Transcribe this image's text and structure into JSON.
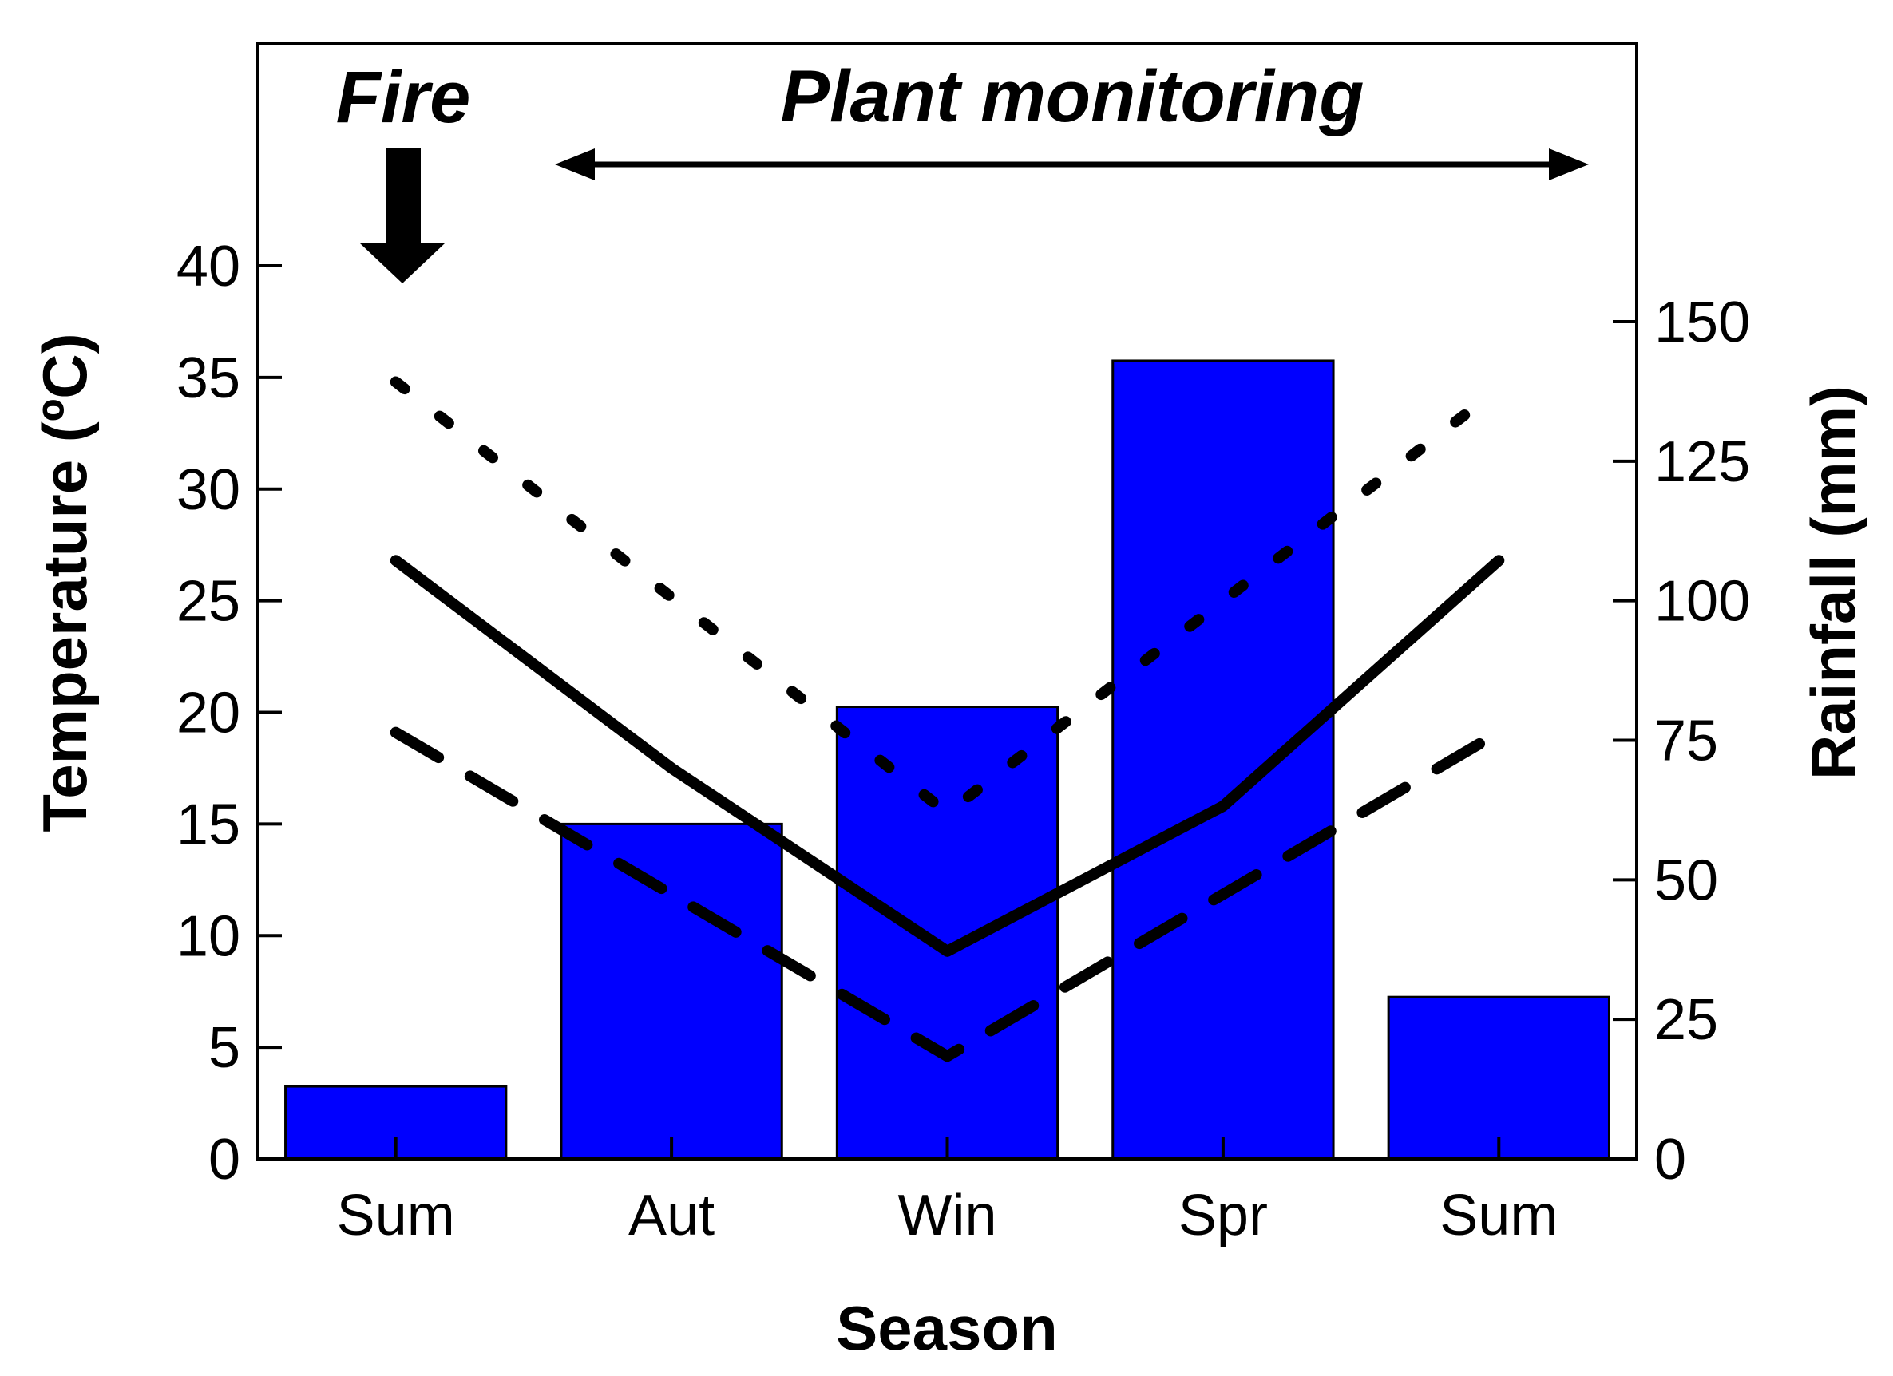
{
  "chart_data": {
    "type": "bar",
    "categories": [
      "Sum",
      "Aut",
      "Win",
      "Spr",
      "Sum"
    ],
    "xlabel": "Season",
    "ylabel_left": "Temperature (ºC)",
    "ylabel_right": "Rainfall (mm)",
    "left_axis": {
      "ylim": [
        0,
        40
      ],
      "ticks": [
        0,
        5,
        10,
        15,
        20,
        25,
        30,
        35,
        40
      ]
    },
    "right_axis": {
      "ylim": [
        0,
        150
      ],
      "ticks": [
        0,
        25,
        50,
        75,
        100,
        125,
        150
      ]
    },
    "bars": {
      "axis": "right",
      "color": "#0000ff",
      "values": [
        13,
        60,
        81,
        143,
        29
      ]
    },
    "lines": [
      {
        "style": "dotted",
        "axis": "left",
        "values": [
          34.8,
          null,
          15.5,
          null,
          34.5
        ]
      },
      {
        "style": "solid",
        "axis": "left",
        "values": [
          26.8,
          17.5,
          9.3,
          15.8,
          26.8
        ]
      },
      {
        "style": "dashed",
        "axis": "left",
        "values": [
          19.1,
          null,
          4.6,
          null,
          19.1
        ]
      }
    ],
    "annotations": {
      "fire": "Fire",
      "monitoring": "Plant monitoring"
    },
    "grid": false,
    "legend": "none"
  }
}
